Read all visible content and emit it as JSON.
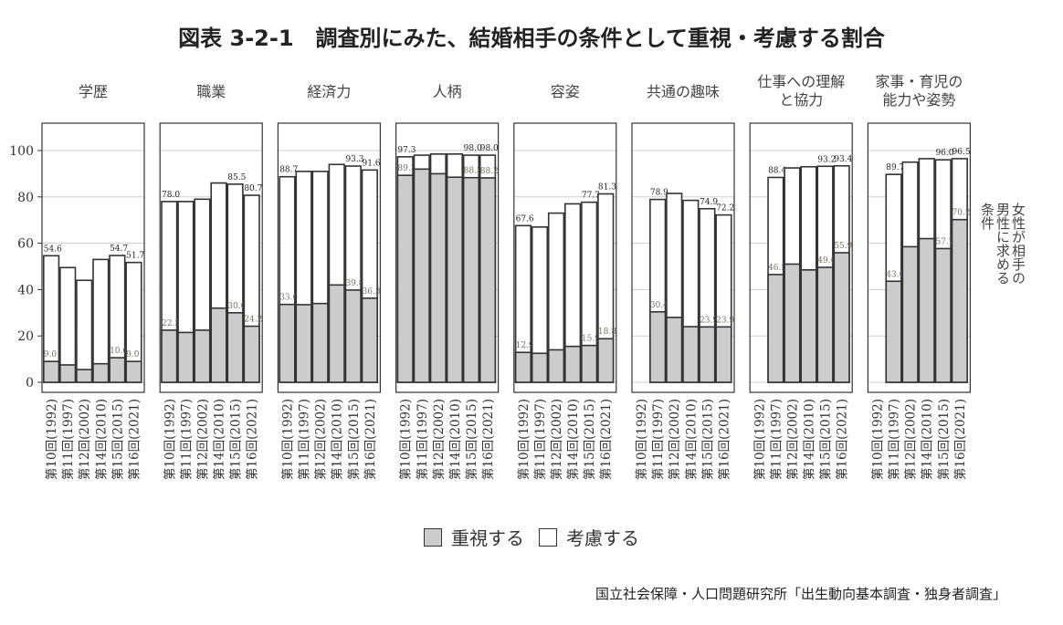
{
  "title": "図表 3-2-1　調査別にみた、結婚相手の条件として重視・考慮する割合",
  "chart_data": {
    "type": "bar",
    "stacked": "overlay",
    "categories": [
      "第10回(1992)",
      "第11回(1997)",
      "第12回(2002)",
      "第14回(2010)",
      "第15回(2015)",
      "第16回(2021)"
    ],
    "ylim": [
      0,
      100
    ],
    "yticks": [
      0,
      20,
      40,
      60,
      80,
      100
    ],
    "grid": true,
    "strip_label": "女性が相手の男性に求める条件",
    "legend": [
      {
        "name": "重視する",
        "color": "#cccccc"
      },
      {
        "name": "考慮する",
        "color": "#ffffff"
      }
    ],
    "legend_placement": "bottom",
    "panels": [
      {
        "title": "学歴",
        "total": [
          54.6,
          49.5,
          44.0,
          53.0,
          54.7,
          51.7
        ],
        "important": [
          9.0,
          7.5,
          5.5,
          8.0,
          10.6,
          9.0
        ],
        "total_labels": [
          "54.6",
          null,
          null,
          null,
          "54.7",
          "51.7"
        ],
        "important_labels": [
          "9.0",
          null,
          null,
          null,
          "10.6",
          "9.0"
        ]
      },
      {
        "title": "職業",
        "total": [
          78.0,
          78.0,
          79.0,
          86.0,
          85.5,
          80.7
        ],
        "important": [
          22.5,
          21.5,
          22.5,
          32.0,
          30.0,
          24.2
        ],
        "total_labels": [
          "78.0",
          null,
          null,
          null,
          "85.5",
          "80.7"
        ],
        "important_labels": [
          "22.5",
          null,
          null,
          null,
          "30.0",
          "24.2"
        ]
      },
      {
        "title": "経済力",
        "total": [
          88.7,
          91.0,
          91.0,
          94.0,
          93.3,
          91.6
        ],
        "important": [
          33.6,
          33.5,
          34.0,
          42.0,
          39.8,
          36.3
        ],
        "total_labels": [
          "88.7",
          null,
          null,
          null,
          "93.3",
          "91.6"
        ],
        "important_labels": [
          "33.6",
          null,
          null,
          null,
          "39.8",
          "36.3"
        ]
      },
      {
        "title": "人柄",
        "total": [
          97.3,
          98.0,
          98.5,
          98.5,
          98.0,
          98.0
        ],
        "important": [
          89.3,
          92.0,
          90.0,
          88.5,
          88.3,
          88.2
        ],
        "total_labels": [
          "97.3",
          null,
          null,
          null,
          "98.0",
          "98.0"
        ],
        "important_labels": [
          "89.3",
          null,
          null,
          null,
          "88.3",
          "88.2"
        ]
      },
      {
        "title": "容姿",
        "total": [
          67.6,
          67.0,
          73.0,
          77.0,
          77.7,
          81.3
        ],
        "important": [
          12.9,
          12.5,
          14.0,
          15.5,
          15.9,
          18.8
        ],
        "total_labels": [
          "67.6",
          null,
          null,
          null,
          "77.7",
          "81.3"
        ],
        "important_labels": [
          "12.9",
          null,
          null,
          null,
          "15.9",
          "18.8"
        ]
      },
      {
        "title": "共通の趣味",
        "total": [
          null,
          78.9,
          81.5,
          78.5,
          74.9,
          72.2
        ],
        "important": [
          null,
          30.4,
          28.0,
          24.0,
          23.9,
          23.9
        ],
        "total_labels": [
          null,
          "78.9",
          null,
          null,
          "74.9",
          "72.2"
        ],
        "important_labels": [
          null,
          "30.4",
          null,
          null,
          "23.9",
          "23.9"
        ]
      },
      {
        "title": "仕事への理解\nと協力",
        "total": [
          null,
          88.4,
          92.5,
          93.0,
          93.2,
          93.4
        ],
        "important": [
          null,
          46.5,
          51.0,
          48.5,
          49.6,
          55.9
        ],
        "total_labels": [
          null,
          "88.4",
          null,
          null,
          "93.2",
          "93.4"
        ],
        "important_labels": [
          null,
          "46.5",
          null,
          null,
          "49.6",
          "55.9"
        ]
      },
      {
        "title": "家事・育児の\n能力や姿勢",
        "total": [
          null,
          89.7,
          95.0,
          96.5,
          96.0,
          96.5
        ],
        "important": [
          null,
          43.6,
          58.5,
          62.0,
          57.7,
          70.2
        ],
        "total_labels": [
          null,
          "89.7",
          null,
          null,
          "96.0",
          "96.5"
        ],
        "important_labels": [
          null,
          "43.6",
          null,
          null,
          "57.7",
          "70.2"
        ]
      }
    ]
  },
  "source": "国立社会保障・人口問題研究所「出生動向基本調査・独身者調査」"
}
